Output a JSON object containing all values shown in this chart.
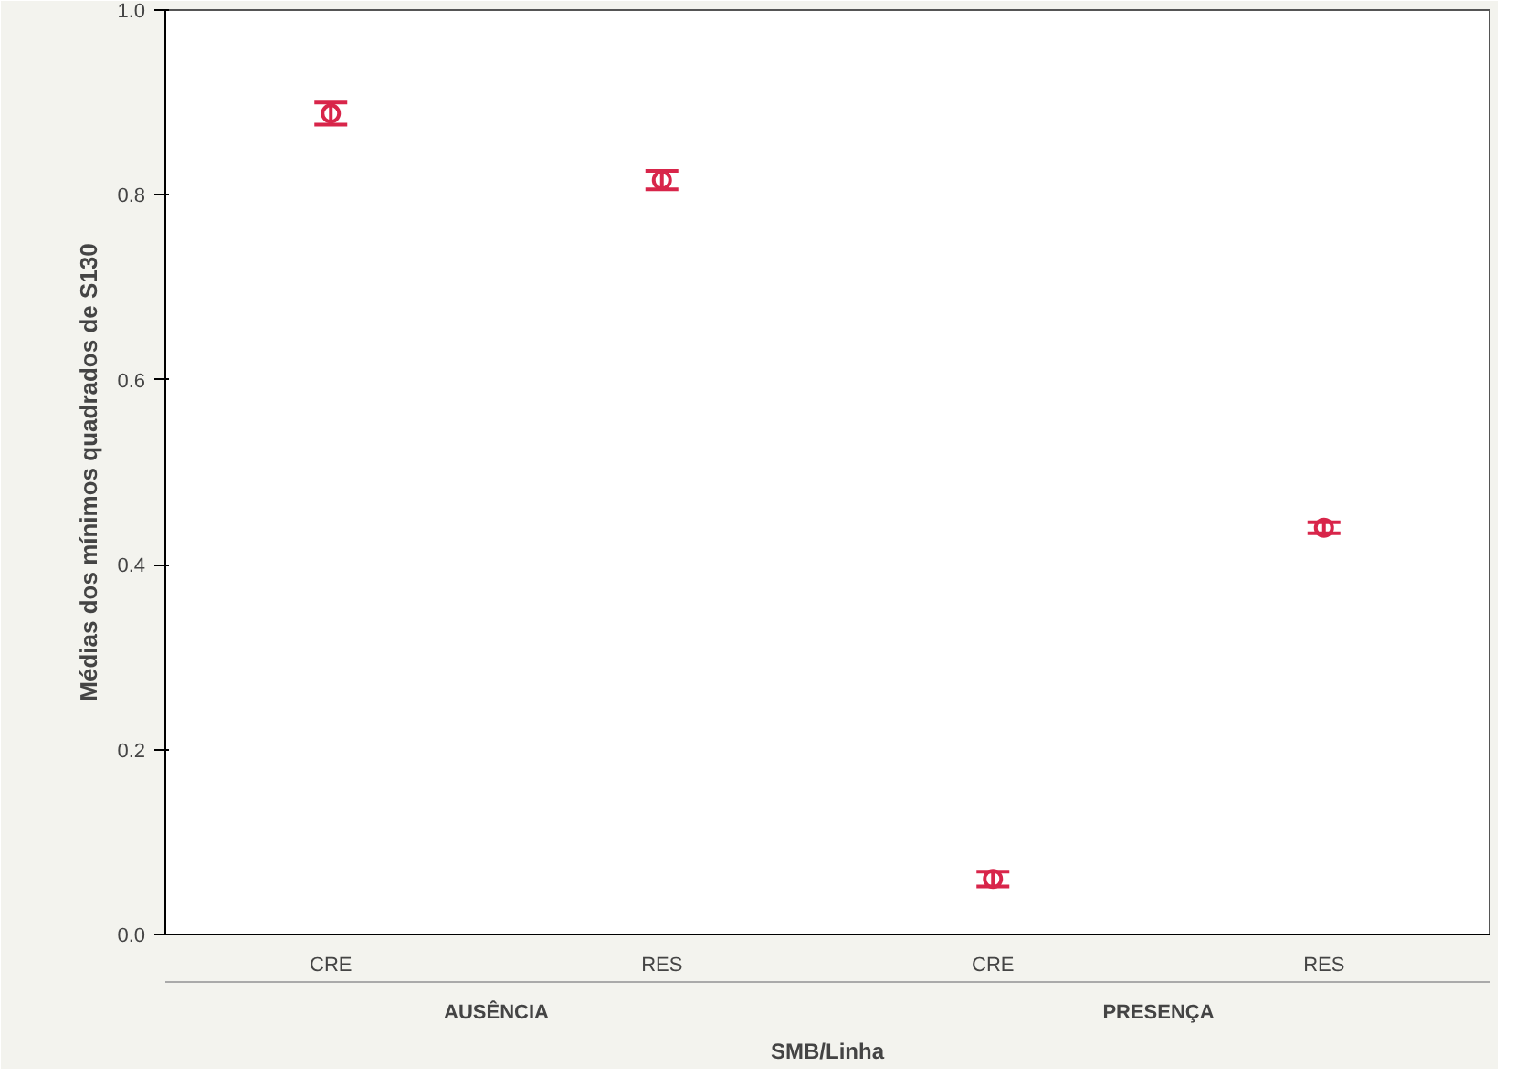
{
  "chart_data": {
    "type": "scatter",
    "xlabel": "SMB/Linha",
    "ylabel": "Médias dos mínimos quadrados de S130",
    "categories": [
      "CRE",
      "RES",
      "CRE",
      "RES"
    ],
    "values": [
      0.888,
      0.816,
      0.06,
      0.44
    ],
    "errors": [
      0.012,
      0.01,
      0.008,
      0.006
    ],
    "color": "#d8254a",
    "marker": "circle",
    "ylim": [
      0,
      1
    ],
    "yticks": [
      {
        "value": 0,
        "label": "0.0"
      },
      0.2,
      0.4,
      0.6,
      0.8,
      {
        "value": 1,
        "label": "1.0"
      }
    ],
    "annotations": [
      "AUSÊNCIA",
      "PRESENÇA"
    ],
    "grid": false
  }
}
